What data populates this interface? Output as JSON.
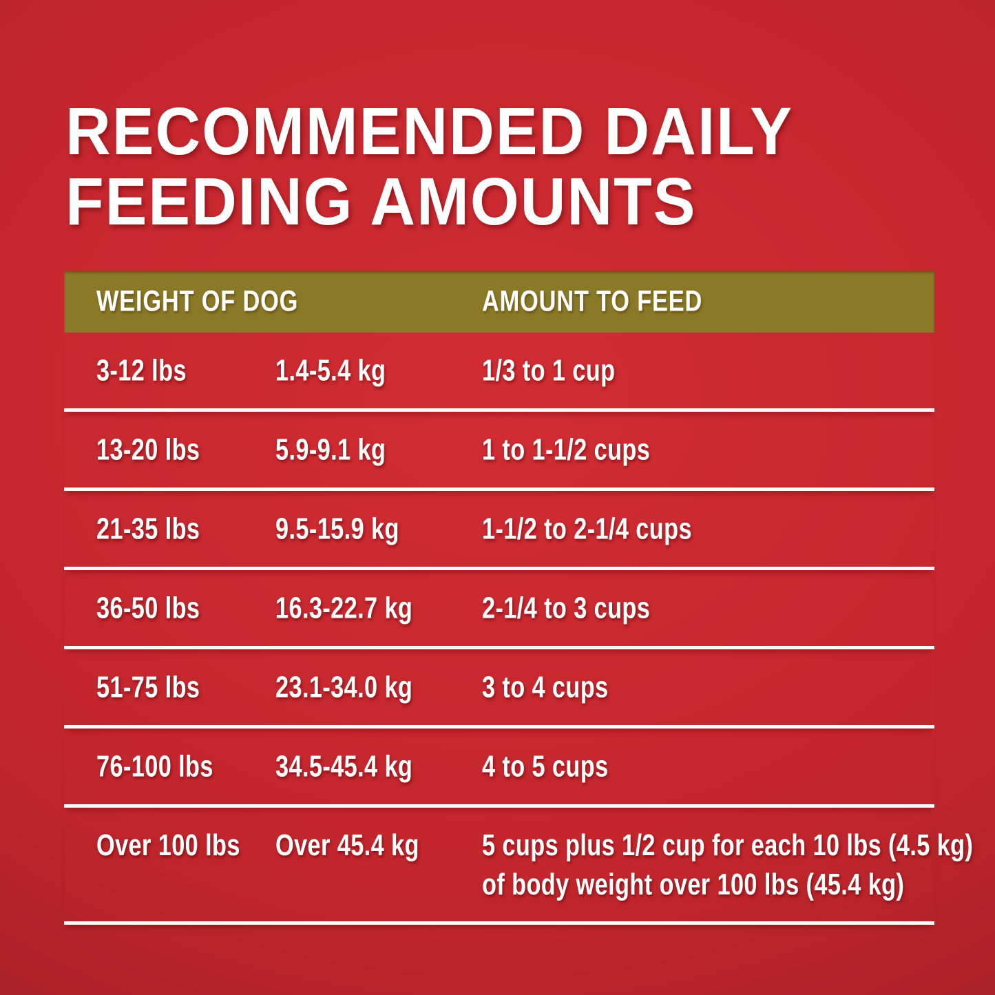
{
  "title": "RECOMMENDED DAILY\nFEEDING AMOUNTS",
  "table": {
    "header": {
      "col_weight": "WEIGHT OF DOG",
      "col_amount": "AMOUNT TO FEED"
    },
    "rows": [
      {
        "lbs": "3-12 lbs",
        "kg": "1.4-5.4 kg",
        "amount": "1/3 to 1 cup"
      },
      {
        "lbs": "13-20 lbs",
        "kg": "5.9-9.1 kg",
        "amount": "1 to 1-1/2 cups"
      },
      {
        "lbs": "21-35 lbs",
        "kg": "9.5-15.9 kg",
        "amount": "1-1/2 to 2-1/4 cups"
      },
      {
        "lbs": "36-50 lbs",
        "kg": "16.3-22.7 kg",
        "amount": "2-1/4 to 3 cups"
      },
      {
        "lbs": "51-75 lbs",
        "kg": "23.1-34.0 kg",
        "amount": "3 to 4 cups"
      },
      {
        "lbs": "76-100 lbs",
        "kg": "34.5-45.4 kg",
        "amount": "4 to 5 cups"
      },
      {
        "lbs": "Over 100 lbs",
        "kg": "Over 45.4 kg",
        "amount": "5 cups plus 1/2 cup for each 10 lbs (4.5 kg)\nof body weight over 100 lbs (45.4 kg)"
      }
    ]
  },
  "colors": {
    "background_center": "#d12c33",
    "background_mid": "#c4262d",
    "background_edge": "#941c23",
    "header_bar": "#8a7a28",
    "text": "#ffffff",
    "separator": "#fcfbfa"
  }
}
